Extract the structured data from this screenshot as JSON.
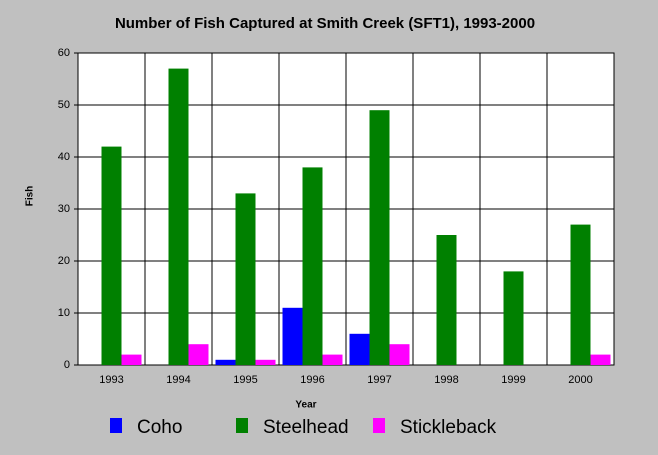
{
  "chart_data": {
    "type": "bar",
    "title": "Number of Fish Captured at Smith Creek (SFT1), 1993-2000",
    "x_label": "Year",
    "y_label": "Fish",
    "categories": [
      "1993",
      "1994",
      "1995",
      "1996",
      "1997",
      "1998",
      "1999",
      "2000"
    ],
    "series": [
      {
        "name": "Coho",
        "color": "#0000ff",
        "values": [
          0,
          0,
          1,
          11,
          6,
          0,
          0,
          0
        ]
      },
      {
        "name": "Steelhead",
        "color": "#008000",
        "values": [
          42,
          57,
          33,
          38,
          49,
          25,
          18,
          27
        ]
      },
      {
        "name": "Stickleback",
        "color": "#ff00ff",
        "values": [
          2,
          4,
          1,
          2,
          4,
          0,
          0,
          2
        ]
      }
    ],
    "ylim": [
      0,
      60
    ],
    "yticks": [
      0,
      10,
      20,
      30,
      40,
      50,
      60
    ],
    "grid": true,
    "legend": "bottom"
  }
}
